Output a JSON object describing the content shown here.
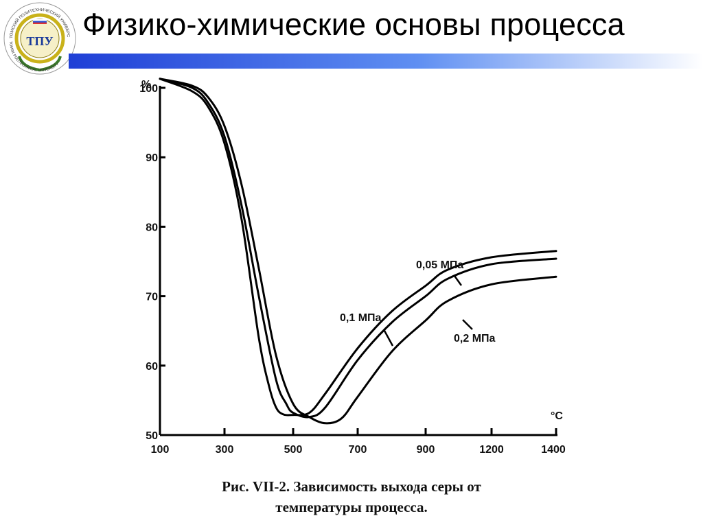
{
  "header": {
    "title": "Физико-химические основы процесса",
    "logo_text_top": "ТОМСКИЙ ПОЛИТЕХНИЧЕСКИЙ УНИВЕРСИТЕТ",
    "logo_text_bottom": "TOMSK POLITECHNICAL UNIVERSITY",
    "logo_monogram": "ТПУ"
  },
  "caption": {
    "line1": "Рис. VII-2. Зависимость выхода серы от",
    "line2": "температуры процесса."
  },
  "colors": {
    "bar_dark": "#1f3fd6",
    "bar_mid": "#5f8ff2",
    "bar_light": "#ffffff",
    "logo_ring": "#c9b21a"
  },
  "chart_data": {
    "type": "line",
    "title": "",
    "xlabel": "°C",
    "ylabel": "%",
    "x_tick_labels": [
      "100",
      "300",
      "500",
      "700",
      "900",
      "1200",
      "1400"
    ],
    "y_ticks": [
      50,
      60,
      70,
      80,
      90,
      100
    ],
    "y_tick_labels": [
      "50",
      "60",
      "70",
      "80",
      "90",
      "100"
    ],
    "ylim": [
      50,
      100
    ],
    "grid": false,
    "series": [
      {
        "name": "0,05 МПа",
        "points": [
          [
            100,
            101.3
          ],
          [
            200,
            99.5
          ],
          [
            250,
            97.2
          ],
          [
            300,
            92
          ],
          [
            350,
            81
          ],
          [
            400,
            64
          ],
          [
            430,
            57
          ],
          [
            450,
            54
          ],
          [
            470,
            53
          ],
          [
            500,
            52.9
          ],
          [
            550,
            53.2
          ],
          [
            600,
            56
          ],
          [
            700,
            62.5
          ],
          [
            800,
            67.8
          ],
          [
            900,
            71.5
          ],
          [
            1000,
            73.8
          ],
          [
            1200,
            75.6
          ],
          [
            1400,
            76.5
          ]
        ]
      },
      {
        "name": "0,1 МПа",
        "points": [
          [
            100,
            101.3
          ],
          [
            200,
            100
          ],
          [
            250,
            97.8
          ],
          [
            300,
            93
          ],
          [
            350,
            83
          ],
          [
            400,
            70
          ],
          [
            450,
            58
          ],
          [
            480,
            54.5
          ],
          [
            500,
            53.2
          ],
          [
            550,
            52.6
          ],
          [
            600,
            54
          ],
          [
            700,
            60.8
          ],
          [
            800,
            66.2
          ],
          [
            900,
            70
          ],
          [
            1000,
            72.5
          ],
          [
            1200,
            74.6
          ],
          [
            1400,
            75.4
          ]
        ]
      },
      {
        "name": "0,2 МПа",
        "points": [
          [
            100,
            101.3
          ],
          [
            200,
            100.3
          ],
          [
            250,
            98.6
          ],
          [
            300,
            94.5
          ],
          [
            350,
            86
          ],
          [
            400,
            74
          ],
          [
            450,
            61.5
          ],
          [
            500,
            54.5
          ],
          [
            550,
            52.6
          ],
          [
            600,
            51.7
          ],
          [
            650,
            52.4
          ],
          [
            700,
            55.5
          ],
          [
            800,
            62
          ],
          [
            900,
            66.5
          ],
          [
            1000,
            69.3
          ],
          [
            1200,
            71.7
          ],
          [
            1400,
            72.8
          ]
        ]
      }
    ],
    "annotations": [
      "0,05 МПа",
      "0,1 МПа",
      "0,2 МПа"
    ]
  }
}
